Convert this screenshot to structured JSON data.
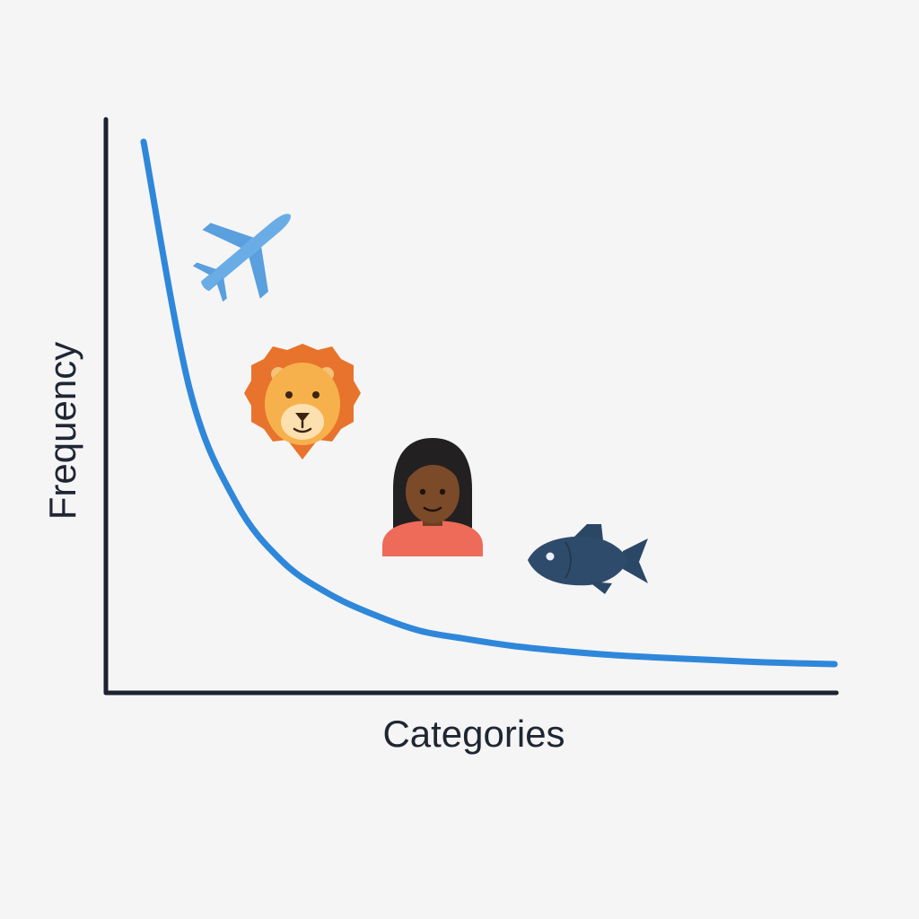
{
  "colors": {
    "background": "#f5f5f6",
    "axis": "#1c2230",
    "curve": "#2f87da",
    "text": "#1f2633"
  },
  "chart_data": {
    "type": "line",
    "title": "",
    "xlabel": "Categories",
    "ylabel": "Frequency",
    "x_ticks": false,
    "y_ticks": false,
    "grid": false,
    "legend": "none",
    "series": [
      {
        "values": [
          100,
          54,
          33,
          22,
          16,
          12,
          9,
          7.5,
          6.2,
          5.3,
          4.6,
          4.1,
          3.7,
          3.3,
          3.0,
          2.8
        ]
      }
    ],
    "xlim": [
      0,
      16
    ],
    "ylim": [
      0,
      105
    ],
    "annotations": [
      {
        "icon": "airplane-icon",
        "near_category": 3
      },
      {
        "icon": "lion-icon",
        "near_category": 4
      },
      {
        "icon": "woman-icon",
        "near_category": 7
      },
      {
        "icon": "fish-icon",
        "near_category": 10
      }
    ]
  }
}
